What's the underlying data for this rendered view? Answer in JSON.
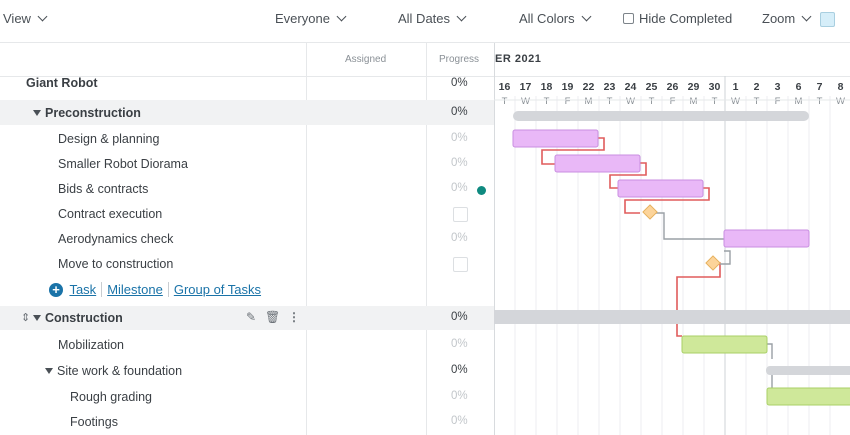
{
  "toolbar": {
    "view": "View",
    "everyone": "Everyone",
    "all_dates": "All Dates",
    "all_colors": "All Colors",
    "hide_completed": "Hide Completed",
    "zoom": "Zoom"
  },
  "header": {
    "assigned": "Assigned",
    "progress": "Progress",
    "month": "ER 2021"
  },
  "days": [
    {
      "d": "16",
      "w": "T"
    },
    {
      "d": "17",
      "w": "W"
    },
    {
      "d": "18",
      "w": "T"
    },
    {
      "d": "19",
      "w": "F"
    },
    {
      "d": "22",
      "w": "M"
    },
    {
      "d": "23",
      "w": "T"
    },
    {
      "d": "24",
      "w": "W"
    },
    {
      "d": "25",
      "w": "T"
    },
    {
      "d": "26",
      "w": "F"
    },
    {
      "d": "29",
      "w": "M"
    },
    {
      "d": "30",
      "w": "T"
    },
    {
      "d": "1",
      "w": "W"
    },
    {
      "d": "2",
      "w": "T"
    },
    {
      "d": "3",
      "w": "F"
    },
    {
      "d": "6",
      "w": "M"
    },
    {
      "d": "7",
      "w": "T"
    },
    {
      "d": "8",
      "w": "W"
    }
  ],
  "rows": [
    {
      "name": "Giant Robot",
      "progress": "0%"
    },
    {
      "name": "Preconstruction",
      "progress": "0%"
    },
    {
      "name": "Design & planning",
      "progress": "0%"
    },
    {
      "name": "Smaller Robot Diorama",
      "progress": "0%"
    },
    {
      "name": "Bids & contracts",
      "progress": "0%"
    },
    {
      "name": "Contract execution",
      "progress": ""
    },
    {
      "name": "Aerodynamics check",
      "progress": "0%"
    },
    {
      "name": "Move to construction",
      "progress": ""
    },
    {
      "name": "Construction",
      "progress": "0%"
    },
    {
      "name": "Mobilization",
      "progress": "0%"
    },
    {
      "name": "Site work & foundation",
      "progress": "0%"
    },
    {
      "name": "Rough grading",
      "progress": "0%"
    },
    {
      "name": "Footings",
      "progress": "0%"
    }
  ],
  "add_links": {
    "task": "Task",
    "milestone": "Milestone",
    "group": "Group of Tasks"
  },
  "colors": {
    "task_bar": "#e9b8f7",
    "task_bar_border": "#c98ee0",
    "construction_bar": "#cfe89a",
    "construction_bar_border": "#a8cf66",
    "milestone": "#fcd49a",
    "dependency": "#e05c5c",
    "dependency_grey": "#9aa0a6",
    "group_bar": "#d4d6da",
    "accent_link": "#1a73a8"
  }
}
